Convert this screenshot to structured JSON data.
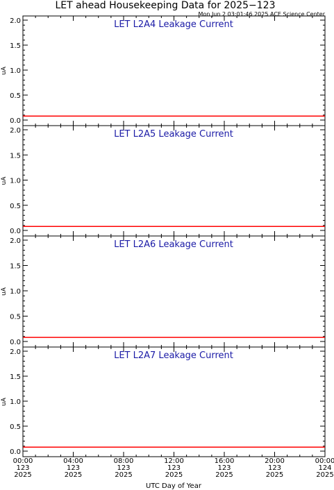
{
  "header": {
    "title": "LET ahead Housekeeping Data for 2025−123",
    "timestamp": "Mon Jun  2 03:01:46 2025 ACE Science Center"
  },
  "colors": {
    "series": "#ff0000",
    "panel_title": "#1a1aa6",
    "axis": "#000000"
  },
  "chart_data": [
    {
      "type": "line",
      "title": "LET L2A4 Leakage Current",
      "ylabel": "uA",
      "ylim": [
        0,
        2
      ],
      "yticks": [
        "0.0",
        "0.5",
        "1.0",
        "1.5",
        "2.0"
      ],
      "xlim": [
        0,
        24
      ],
      "series": [
        {
          "x": [
            0,
            24
          ],
          "values": [
            0.08,
            0.08
          ]
        }
      ]
    },
    {
      "type": "line",
      "title": "LET L2A5 Leakage Current",
      "ylabel": "uA",
      "ylim": [
        0,
        2
      ],
      "yticks": [
        "0.0",
        "0.5",
        "1.0",
        "1.5",
        "2.0"
      ],
      "xlim": [
        0,
        24
      ],
      "series": [
        {
          "x": [
            0,
            24
          ],
          "values": [
            0.08,
            0.08
          ]
        }
      ]
    },
    {
      "type": "line",
      "title": "LET L2A6 Leakage Current",
      "ylabel": "uA",
      "ylim": [
        0,
        2
      ],
      "yticks": [
        "0.0",
        "0.5",
        "1.0",
        "1.5",
        "2.0"
      ],
      "xlim": [
        0,
        24
      ],
      "series": [
        {
          "x": [
            0,
            24
          ],
          "values": [
            0.08,
            0.08
          ]
        }
      ]
    },
    {
      "type": "line",
      "title": "LET L2A7 Leakage Current",
      "ylabel": "uA",
      "ylim": [
        0,
        2
      ],
      "yticks": [
        "0.0",
        "0.5",
        "1.0",
        "1.5",
        "2.0"
      ],
      "xlim": [
        0,
        24
      ],
      "series": [
        {
          "x": [
            0,
            24
          ],
          "values": [
            0.08,
            0.08
          ]
        }
      ]
    }
  ],
  "x_axis": {
    "label": "UTC Day of Year",
    "ticks": [
      {
        "time": "00:00",
        "doy": "123",
        "year": "2025"
      },
      {
        "time": "04:00",
        "doy": "123",
        "year": "2025"
      },
      {
        "time": "08:00",
        "doy": "123",
        "year": "2025"
      },
      {
        "time": "12:00",
        "doy": "123",
        "year": "2025"
      },
      {
        "time": "16:00",
        "doy": "123",
        "year": "2025"
      },
      {
        "time": "20:00",
        "doy": "123",
        "year": "2025"
      },
      {
        "time": "00:00",
        "doy": "124",
        "year": "2025"
      }
    ]
  }
}
